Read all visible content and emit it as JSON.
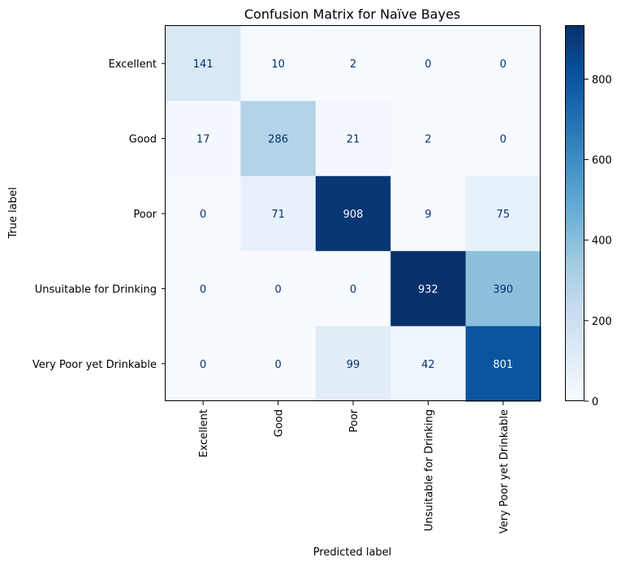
{
  "chart_data": {
    "type": "heatmap",
    "title": "Confusion Matrix for Naïve Bayes",
    "xlabel": "Predicted label",
    "ylabel": "True label",
    "x_categories": [
      "Excellent",
      "Good",
      "Poor",
      "Unsuitable for Drinking",
      "Very Poor yet Drinkable"
    ],
    "y_categories": [
      "Excellent",
      "Good",
      "Poor",
      "Unsuitable for Drinking",
      "Very Poor yet Drinkable"
    ],
    "values": [
      [
        141,
        10,
        2,
        0,
        0
      ],
      [
        17,
        286,
        21,
        2,
        0
      ],
      [
        0,
        71,
        908,
        9,
        75
      ],
      [
        0,
        0,
        0,
        932,
        390
      ],
      [
        0,
        0,
        99,
        42,
        801
      ]
    ],
    "colormap": "Blues",
    "vmin": 0,
    "vmax": 932,
    "colorbar_ticks": [
      0,
      200,
      400,
      600,
      800
    ],
    "grid": false
  }
}
